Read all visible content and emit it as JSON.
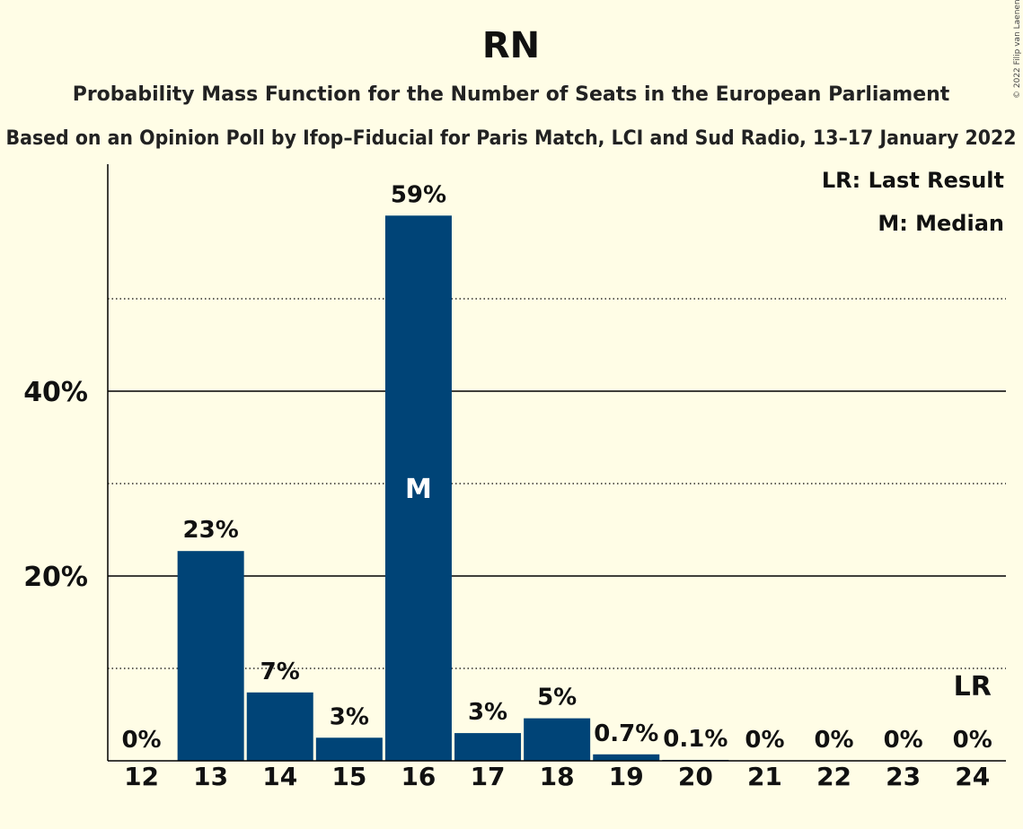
{
  "chart_data": {
    "type": "bar",
    "title": "RN",
    "subtitle": "Probability Mass Function for the Number of Seats in the European Parliament",
    "subtitle2": "Based on an Opinion Poll by Ifop–Fiducial for Paris Match, LCI and Sud Radio, 13–17 January 2022",
    "categories": [
      "12",
      "13",
      "14",
      "15",
      "16",
      "17",
      "18",
      "19",
      "20",
      "21",
      "22",
      "23",
      "24"
    ],
    "values": [
      0,
      22.7,
      7.4,
      2.5,
      59.0,
      3.0,
      4.6,
      0.7,
      0.1,
      0,
      0,
      0,
      0
    ],
    "data_labels": [
      "0%",
      "23%",
      "7%",
      "3%",
      "59%",
      "3%",
      "5%",
      "0.7%",
      "0.1%",
      "0%",
      "0%",
      "0%",
      "0%"
    ],
    "y_ticks": [
      {
        "value": 20,
        "label": "20%"
      },
      {
        "value": 40,
        "label": "40%"
      }
    ],
    "ylim": [
      0,
      64
    ],
    "grid": true,
    "median_seat": "16",
    "median_mark": "M",
    "last_result_seat": "24",
    "last_result_mark": "LR",
    "legend": {
      "placement": "top-right",
      "items": [
        "LR: Last Result",
        "M: Median"
      ]
    },
    "bar_color": "#004477",
    "copyright": "© 2022 Filip van Laenen"
  }
}
